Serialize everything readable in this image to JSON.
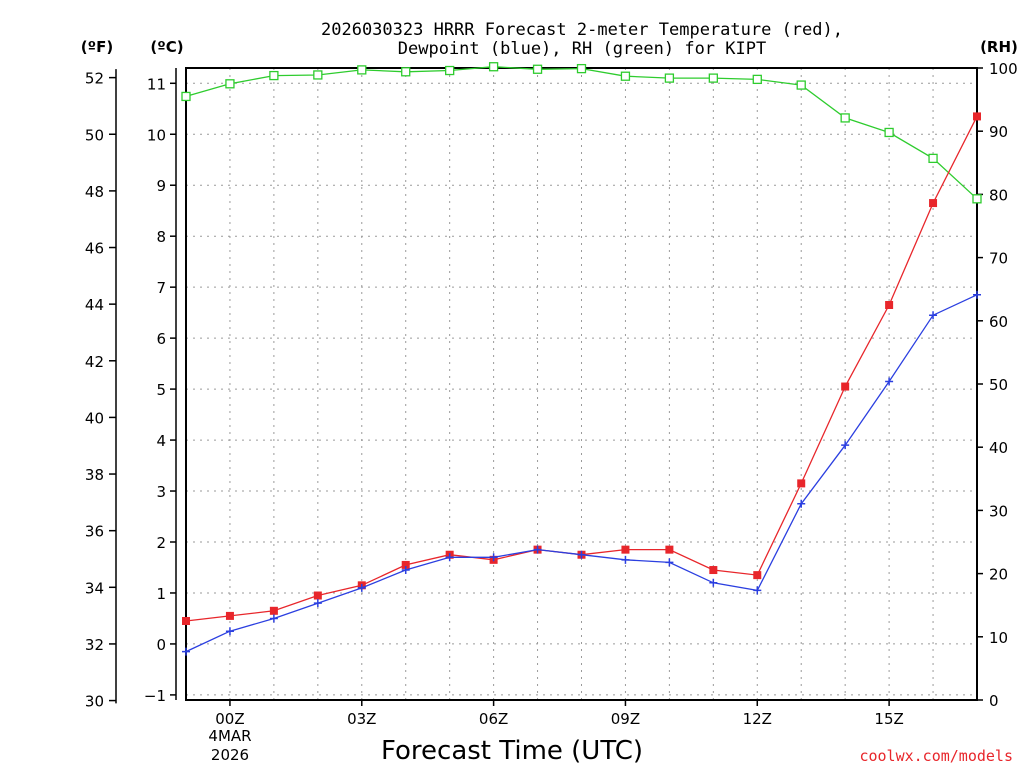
{
  "chart_data": {
    "type": "line",
    "title": [
      "2026030323 HRRR Forecast 2-meter Temperature (red),",
      "Dewpoint (blue), RH (green) for KIPT"
    ],
    "xlabel": "Forecast Time (UTC)",
    "credit": "coolwx.com/models",
    "date_label": [
      "4MAR",
      "2026"
    ],
    "unit_labels": {
      "fahrenheit": "(ºF)",
      "celsius": "(ºC)",
      "rh": "(RH)"
    },
    "x_ticks": [
      {
        "hour": 0,
        "label": "00Z"
      },
      {
        "hour": 3,
        "label": "03Z"
      },
      {
        "hour": 6,
        "label": "06Z"
      },
      {
        "hour": 9,
        "label": "09Z"
      },
      {
        "hour": 12,
        "label": "12Z"
      },
      {
        "hour": 15,
        "label": "15Z"
      }
    ],
    "xlim": [
      -1,
      17
    ],
    "ylim_celsius": [
      -1.1,
      11.3
    ],
    "ylim_rh": [
      0,
      100
    ],
    "y_left_fahrenheit": {
      "ticks": [
        30,
        32,
        34,
        36,
        38,
        40,
        42,
        44,
        46,
        48,
        50,
        52
      ],
      "labels": [
        "30",
        "32",
        "34",
        "36",
        "38",
        "40",
        "42",
        "44",
        "46",
        "48",
        "50",
        "52"
      ]
    },
    "y_left_celsius": {
      "ticks": [
        -1,
        0,
        1,
        2,
        3,
        4,
        5,
        6,
        7,
        8,
        9,
        10,
        11
      ],
      "labels": [
        "−1",
        "0",
        "1",
        "2",
        "3",
        "4",
        "5",
        "6",
        "7",
        "8",
        "9",
        "10",
        "11"
      ]
    },
    "y_right_rh": {
      "ticks": [
        0,
        10,
        20,
        30,
        40,
        50,
        60,
        70,
        80,
        90,
        100
      ],
      "labels": [
        "0",
        "10",
        "20",
        "30",
        "40",
        "50",
        "60",
        "70",
        "80",
        "90",
        "100"
      ]
    },
    "grid": true,
    "series": [
      {
        "name": "Temperature",
        "unit": "C",
        "color": "#e8262b",
        "marker": "filled-square",
        "x": [
          -1,
          0,
          1,
          2,
          3,
          4,
          5,
          6,
          7,
          8,
          9,
          10,
          11,
          12,
          13,
          14,
          15,
          16,
          17
        ],
        "values": [
          0.45,
          0.55,
          0.65,
          0.95,
          1.15,
          1.55,
          1.75,
          1.65,
          1.85,
          1.75,
          1.85,
          1.85,
          1.45,
          1.35,
          3.15,
          5.05,
          6.65,
          8.65,
          10.35
        ]
      },
      {
        "name": "Dewpoint",
        "unit": "C",
        "color": "#2b3fe0",
        "marker": "plus",
        "x": [
          -1,
          0,
          1,
          2,
          3,
          4,
          5,
          6,
          7,
          8,
          9,
          10,
          11,
          12,
          13,
          14,
          15,
          16,
          17
        ],
        "values": [
          -0.15,
          0.25,
          0.5,
          0.8,
          1.1,
          1.45,
          1.7,
          1.7,
          1.85,
          1.75,
          1.65,
          1.6,
          1.2,
          1.05,
          2.75,
          3.9,
          5.15,
          6.45,
          6.85
        ]
      },
      {
        "name": "RH",
        "unit": "%",
        "color": "#2ecc2e",
        "marker": "open-square",
        "x": [
          -1,
          0,
          1,
          2,
          3,
          4,
          5,
          6,
          7,
          8,
          9,
          10,
          11,
          12,
          13,
          14,
          15,
          16,
          17
        ],
        "values": [
          95.5,
          97.5,
          98.8,
          98.9,
          99.7,
          99.4,
          99.6,
          100.2,
          99.8,
          99.9,
          98.7,
          98.4,
          98.4,
          98.2,
          97.3,
          92.1,
          89.8,
          85.7,
          79.3
        ]
      }
    ]
  }
}
